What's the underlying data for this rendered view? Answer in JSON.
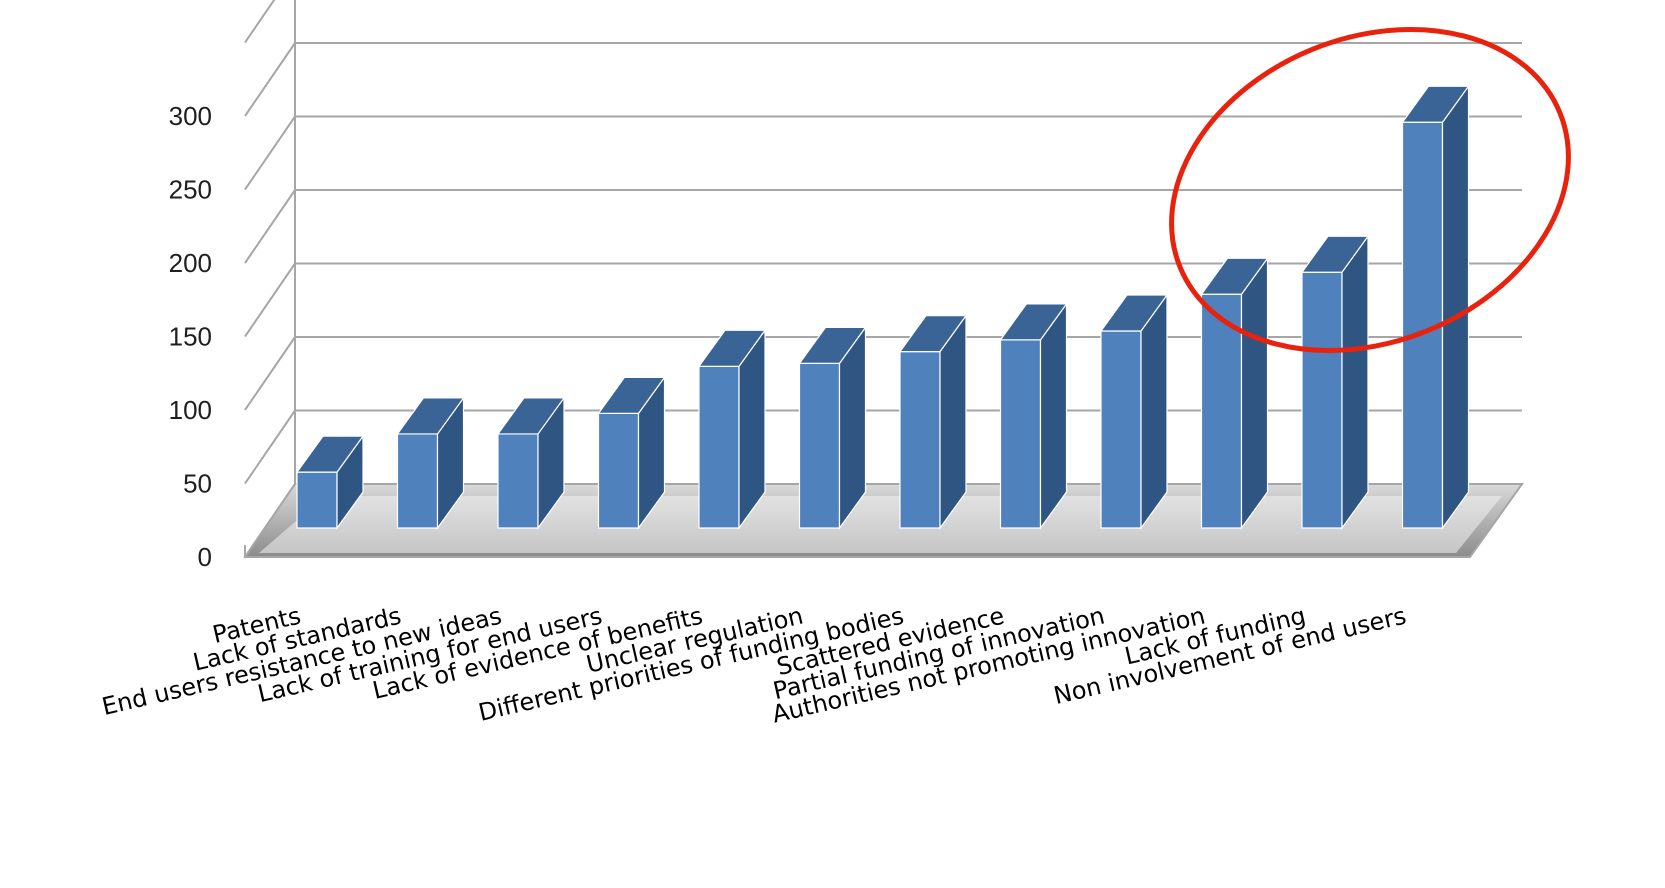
{
  "chart_data": {
    "type": "bar",
    "title": "",
    "xlabel": "",
    "ylabel": "",
    "ylim": [
      0,
      350
    ],
    "yticks": [
      0,
      50,
      100,
      150,
      200,
      250,
      300
    ],
    "grid": true,
    "style": "3d-column",
    "categories": [
      "Patents",
      "Lack of standards",
      "End users resistance to new ideas",
      "Lack of training for end users",
      "Lack of evidence of benefits",
      "Unclear regulation",
      "Different priorities of funding bodies",
      "Scattered evidence",
      "Partial funding of innovation",
      "Authorities not promoting innovation",
      "Lack of funding",
      "Non involvement of end users"
    ],
    "values": [
      38,
      64,
      64,
      78,
      110,
      112,
      120,
      128,
      134,
      159,
      174,
      276
    ],
    "highlight": {
      "shape": "ellipse",
      "color": "#e8220d",
      "categories": [
        "Lack of funding",
        "Non involvement of end users"
      ]
    },
    "colors": {
      "bar_front": "#4f81bd",
      "bar_top": "#3a6496",
      "bar_side": "#2f5582",
      "gridline": "#a6a6a6"
    }
  }
}
